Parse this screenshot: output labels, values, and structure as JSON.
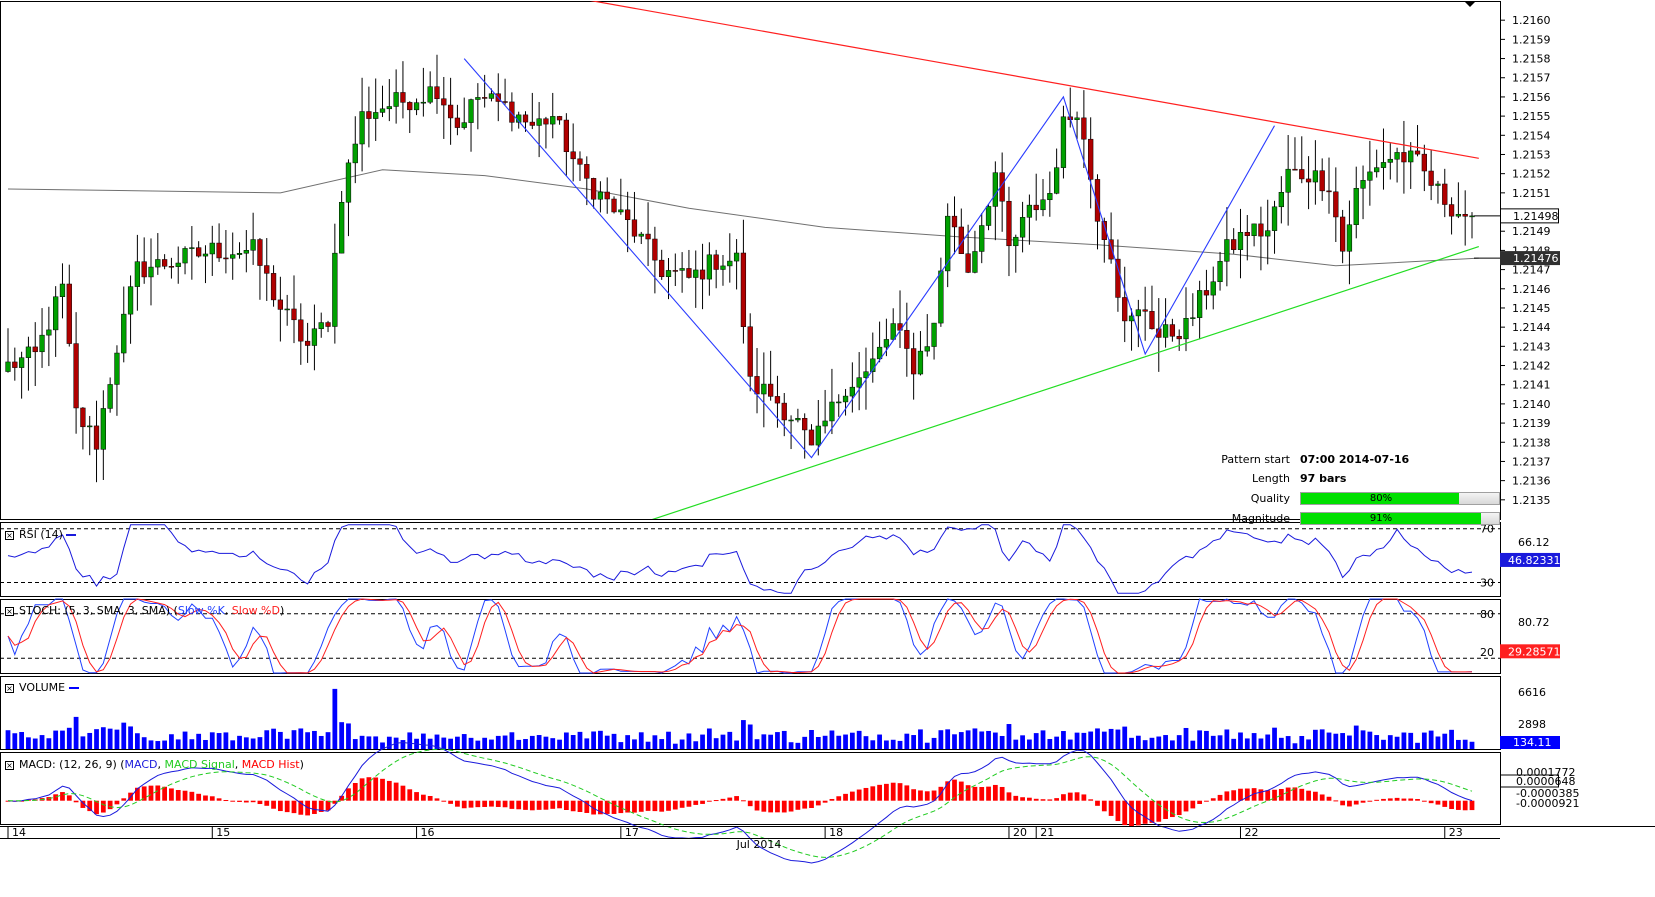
{
  "colors": {
    "bull": "#00a000",
    "bear": "#b00000",
    "resistance": "#ff2020",
    "support": "#22dd22",
    "zigzag": "#2a3cff",
    "ma": "#707070",
    "rsi": "#1a1adc",
    "stoch_k": "#2040ff",
    "stoch_d": "#ff2020",
    "volume": "#0000ff",
    "macd": "#1a1adc",
    "macd_signal": "#22cc22",
    "macd_hist": "#ff0000"
  },
  "pattern_info": {
    "start_label": "Pattern start",
    "start_value": "07:00 2014-07-16",
    "length_label": "Length",
    "length_value": "97 bars",
    "quality_label": "Quality",
    "quality_value": "80%",
    "quality_pct": 80,
    "magnitude_label": "Magnitude",
    "magnitude_value": "91%",
    "magnitude_pct": 91
  },
  "panels": {
    "rsi": {
      "title": "RSI (14)",
      "levels": [
        "70",
        "66.12",
        "30"
      ],
      "current": "46.82331"
    },
    "stoch": {
      "title_prefix": "STOCH: (5, 3, SMA, 3, SMA) (",
      "k_label": "Slow %K",
      "sep": ", ",
      "d_label": "Slow %D",
      "title_suffix": ")",
      "levels": [
        "80",
        "80.72",
        "20"
      ],
      "current": "29.28571"
    },
    "volume": {
      "title": "VOLUME",
      "levels": [
        "6616",
        "2898"
      ],
      "current": "134.11"
    },
    "macd": {
      "title_prefix": "MACD: (12, 26, 9) (",
      "macd_label": "MACD",
      "sep1": ", ",
      "signal_label": "MACD Signal",
      "sep2": ", ",
      "hist_label": "MACD Hist",
      "title_suffix": ")",
      "levels": [
        "0.0001772",
        "0.0000648",
        "-0.0000385",
        "-0.0000921"
      ]
    }
  },
  "chart_data": {
    "type": "candlestick",
    "title": "",
    "instrument_scale": "price",
    "ylim": [
      1.2134,
      1.2161
    ],
    "y_ticks": [
      "1.2160",
      "1.2159",
      "1.2158",
      "1.2157",
      "1.2156",
      "1.2155",
      "1.2154",
      "1.2153",
      "1.2152",
      "1.2151",
      "1.2149",
      "1.2148",
      "1.2147",
      "1.2146",
      "1.2145",
      "1.2144",
      "1.2143",
      "1.2142",
      "1.2141",
      "1.2140",
      "1.2139",
      "1.2138",
      "1.2137",
      "1.2136",
      "1.2135"
    ],
    "price_markers": {
      "last": "1.21498",
      "ma": "1.21476"
    },
    "x_tick_labels": [
      {
        "label": "14",
        "bar": 0
      },
      {
        "label": "15",
        "bar": 30
      },
      {
        "label": "16",
        "bar": 60
      },
      {
        "label": "17",
        "bar": 90
      },
      {
        "label": "18",
        "bar": 120
      },
      {
        "label": "20",
        "bar": 147
      },
      {
        "label": "21",
        "bar": 151
      },
      {
        "label": "22",
        "bar": 181
      },
      {
        "label": "23",
        "bar": 211
      }
    ],
    "month_label": {
      "label": "Jul 2014",
      "bar": 107
    },
    "bar_count": 216,
    "anchors": [
      {
        "bar": 0,
        "price": 1.2142
      },
      {
        "bar": 4,
        "price": 1.21425
      },
      {
        "bar": 8,
        "price": 1.2146
      },
      {
        "bar": 10,
        "price": 1.21395
      },
      {
        "bar": 13,
        "price": 1.2138
      },
      {
        "bar": 16,
        "price": 1.2143
      },
      {
        "bar": 19,
        "price": 1.2147
      },
      {
        "bar": 25,
        "price": 1.21475
      },
      {
        "bar": 30,
        "price": 1.2148
      },
      {
        "bar": 36,
        "price": 1.2148
      },
      {
        "bar": 40,
        "price": 1.2145
      },
      {
        "bar": 44,
        "price": 1.2143
      },
      {
        "bar": 47,
        "price": 1.21445
      },
      {
        "bar": 49,
        "price": 1.2151
      },
      {
        "bar": 52,
        "price": 1.2155
      },
      {
        "bar": 55,
        "price": 1.21555
      },
      {
        "bar": 60,
        "price": 1.2156
      },
      {
        "bar": 63,
        "price": 1.21565
      },
      {
        "bar": 66,
        "price": 1.21545
      },
      {
        "bar": 69,
        "price": 1.2156
      },
      {
        "bar": 73,
        "price": 1.21555
      },
      {
        "bar": 77,
        "price": 1.21545
      },
      {
        "bar": 80,
        "price": 1.2155
      },
      {
        "bar": 84,
        "price": 1.2152
      },
      {
        "bar": 88,
        "price": 1.21505
      },
      {
        "bar": 92,
        "price": 1.2149
      },
      {
        "bar": 96,
        "price": 1.2147
      },
      {
        "bar": 100,
        "price": 1.21465
      },
      {
        "bar": 104,
        "price": 1.21475
      },
      {
        "bar": 107,
        "price": 1.21475
      },
      {
        "bar": 109,
        "price": 1.2141
      },
      {
        "bar": 112,
        "price": 1.21405
      },
      {
        "bar": 116,
        "price": 1.2139
      },
      {
        "bar": 118,
        "price": 1.21375
      },
      {
        "bar": 120,
        "price": 1.2139
      },
      {
        "bar": 123,
        "price": 1.2141
      },
      {
        "bar": 126,
        "price": 1.21415
      },
      {
        "bar": 130,
        "price": 1.2144
      },
      {
        "bar": 133,
        "price": 1.2142
      },
      {
        "bar": 136,
        "price": 1.2144
      },
      {
        "bar": 138,
        "price": 1.215
      },
      {
        "bar": 141,
        "price": 1.2147
      },
      {
        "bar": 145,
        "price": 1.2152
      },
      {
        "bar": 147,
        "price": 1.2148
      },
      {
        "bar": 150,
        "price": 1.215
      },
      {
        "bar": 153,
        "price": 1.2151
      },
      {
        "bar": 155,
        "price": 1.21545
      },
      {
        "bar": 157,
        "price": 1.21555
      },
      {
        "bar": 160,
        "price": 1.215
      },
      {
        "bar": 162,
        "price": 1.2148
      },
      {
        "bar": 164,
        "price": 1.2144
      },
      {
        "bar": 167,
        "price": 1.2145
      },
      {
        "bar": 169,
        "price": 1.21435
      },
      {
        "bar": 173,
        "price": 1.2144
      },
      {
        "bar": 176,
        "price": 1.2146
      },
      {
        "bar": 179,
        "price": 1.2148
      },
      {
        "bar": 182,
        "price": 1.2149
      },
      {
        "bar": 185,
        "price": 1.2149
      },
      {
        "bar": 188,
        "price": 1.2152
      },
      {
        "bar": 191,
        "price": 1.2152
      },
      {
        "bar": 194,
        "price": 1.21515
      },
      {
        "bar": 196,
        "price": 1.2148
      },
      {
        "bar": 198,
        "price": 1.2151
      },
      {
        "bar": 201,
        "price": 1.21525
      },
      {
        "bar": 204,
        "price": 1.2153
      },
      {
        "bar": 207,
        "price": 1.21525
      },
      {
        "bar": 210,
        "price": 1.2151
      },
      {
        "bar": 213,
        "price": 1.215
      },
      {
        "bar": 215,
        "price": 1.21498
      }
    ],
    "resistance_line": [
      {
        "bar": 78,
        "price": 1.21615
      },
      {
        "bar": 216,
        "price": 1.21528
      }
    ],
    "support_line": [
      {
        "bar": 94,
        "price": 1.21339
      },
      {
        "bar": 216,
        "price": 1.21482
      }
    ],
    "zigzag": [
      {
        "bar": 67,
        "price": 1.2158
      },
      {
        "bar": 118,
        "price": 1.21372
      },
      {
        "bar": 155,
        "price": 1.2156
      },
      {
        "bar": 167,
        "price": 1.21426
      },
      {
        "bar": 186,
        "price": 1.21545
      }
    ],
    "ma_line": [
      {
        "bar": 0,
        "price": 1.21512
      },
      {
        "bar": 20,
        "price": 1.21511
      },
      {
        "bar": 40,
        "price": 1.2151
      },
      {
        "bar": 55,
        "price": 1.21522
      },
      {
        "bar": 70,
        "price": 1.21519
      },
      {
        "bar": 85,
        "price": 1.21512
      },
      {
        "bar": 100,
        "price": 1.21502
      },
      {
        "bar": 120,
        "price": 1.21492
      },
      {
        "bar": 140,
        "price": 1.21487
      },
      {
        "bar": 160,
        "price": 1.21483
      },
      {
        "bar": 180,
        "price": 1.21478
      },
      {
        "bar": 195,
        "price": 1.21472
      },
      {
        "bar": 216,
        "price": 1.21476
      }
    ],
    "rsi_ylim": [
      20,
      75
    ],
    "stoch_ylim": [
      0,
      100
    ],
    "volume_ylim": [
      0,
      8500
    ],
    "macd_ylim": [
      -0.00011,
      0.00023
    ]
  }
}
